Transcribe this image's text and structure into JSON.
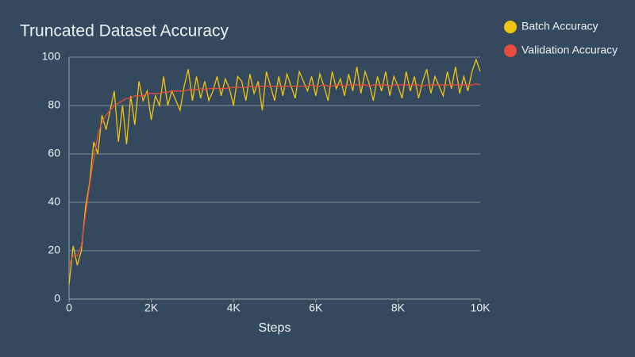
{
  "chart_data": {
    "type": "line",
    "title": "Truncated Dataset Accuracy",
    "x_label": "Steps",
    "x": [
      0,
      100,
      200,
      300,
      400,
      500,
      600,
      700,
      800,
      900,
      1000,
      1100,
      1200,
      1300,
      1400,
      1500,
      1600,
      1700,
      1800,
      1900,
      2000,
      2100,
      2200,
      2300,
      2400,
      2500,
      2600,
      2700,
      2800,
      2900,
      3000,
      3100,
      3200,
      3300,
      3400,
      3500,
      3600,
      3700,
      3800,
      3900,
      4000,
      4100,
      4200,
      4300,
      4400,
      4500,
      4600,
      4700,
      4800,
      4900,
      5000,
      5100,
      5200,
      5300,
      5400,
      5500,
      5600,
      5700,
      5800,
      5900,
      6000,
      6100,
      6200,
      6300,
      6400,
      6500,
      6600,
      6700,
      6800,
      6900,
      7000,
      7100,
      7200,
      7300,
      7400,
      7500,
      7600,
      7700,
      7800,
      7900,
      8000,
      8100,
      8200,
      8300,
      8400,
      8500,
      8600,
      8700,
      8800,
      8900,
      9000,
      9100,
      9200,
      9300,
      9400,
      9500,
      9600,
      9700,
      9800,
      9900,
      10000
    ],
    "series": [
      {
        "name": "Batch Accuracy",
        "color": "#f1c40f",
        "values": [
          6,
          22,
          14,
          20,
          38,
          48,
          65,
          60,
          76,
          70,
          78,
          86,
          65,
          80,
          64,
          84,
          72,
          90,
          82,
          86,
          74,
          84,
          80,
          92,
          80,
          86,
          82,
          78,
          88,
          95,
          82,
          92,
          83,
          90,
          82,
          86,
          92,
          84,
          91,
          87,
          80,
          92,
          90,
          82,
          93,
          85,
          90,
          78,
          94,
          88,
          82,
          92,
          84,
          93,
          88,
          83,
          94,
          90,
          86,
          92,
          84,
          93,
          88,
          82,
          94,
          87,
          91,
          84,
          93,
          86,
          96,
          85,
          94,
          89,
          82,
          92,
          86,
          94,
          84,
          92,
          88,
          83,
          94,
          86,
          92,
          83,
          90,
          95,
          85,
          92,
          88,
          84,
          94,
          87,
          96,
          85,
          92,
          86,
          94,
          99,
          94
        ]
      },
      {
        "name": "Validation Accuracy",
        "color": "#e74c3c",
        "values": [
          14,
          18,
          18,
          22,
          35,
          47,
          58,
          68,
          73,
          76,
          78,
          80,
          81,
          82,
          83,
          83,
          84,
          84,
          84,
          85,
          85,
          85,
          85,
          85.5,
          85.5,
          86,
          86,
          86,
          86,
          86.5,
          86.5,
          86.5,
          87,
          86.5,
          87,
          87,
          87,
          87,
          87,
          87.5,
          87.5,
          87.5,
          87.5,
          87.5,
          88,
          87.5,
          88,
          88,
          88,
          88,
          88,
          88,
          88,
          88,
          88,
          88,
          88,
          88,
          88,
          88.5,
          88,
          88,
          88.5,
          88,
          88,
          88.5,
          88.5,
          88,
          88.5,
          88.5,
          88.5,
          88.5,
          88.5,
          88,
          88.5,
          88.5,
          88.5,
          88.5,
          88,
          88.5,
          88.5,
          88.5,
          88.5,
          88.5,
          88.5,
          88.5,
          88,
          88.5,
          88.5,
          88.5,
          88.5,
          88.5,
          88.5,
          88.5,
          88.5,
          88.5,
          88.5,
          88.5,
          88.5,
          89,
          88.5
        ]
      }
    ],
    "xlim": [
      0,
      10000
    ],
    "ylim": [
      0,
      100
    ],
    "xticks": [
      0,
      {
        "value": 2000,
        "label": "2K"
      },
      {
        "value": 4000,
        "label": "4K"
      },
      {
        "value": 6000,
        "label": "6K"
      },
      {
        "value": 8000,
        "label": "8K"
      },
      {
        "value": 10000,
        "label": "10K"
      }
    ],
    "yticks": [
      0,
      20,
      40,
      60,
      80,
      100
    ],
    "grid": true,
    "legend": "top-right"
  }
}
